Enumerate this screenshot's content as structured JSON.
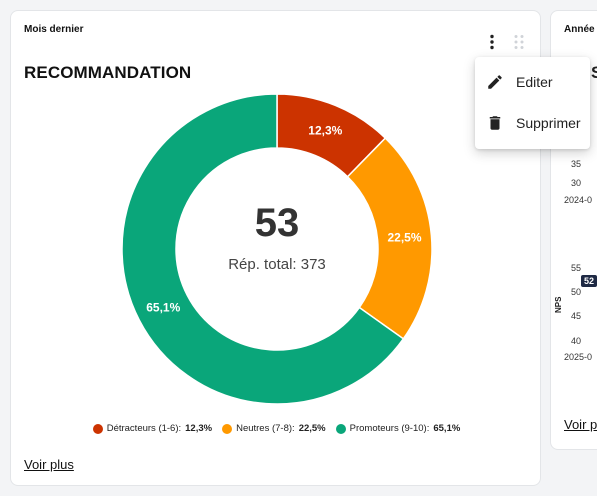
{
  "left_card": {
    "period": "Mois dernier",
    "title": "RECOMMANDATION",
    "score": "53",
    "responses_label": "Rép. total: 373",
    "voir_plus": "Voir plus",
    "legend": [
      {
        "label": "Détracteurs (1-6):",
        "value": "12,3%",
        "color": "#cc3300"
      },
      {
        "label": "Neutres (7-8):",
        "value": "22,5%",
        "color": "#ff9900"
      },
      {
        "label": "Promoteurs (9-10):",
        "value": "65,1%",
        "color": "#0aa67a"
      }
    ],
    "icons": {
      "menu": "more-vert-icon",
      "drag": "drag-handle-icon"
    }
  },
  "chart_data": {
    "type": "pie",
    "categories": [
      "Détracteurs (1-6)",
      "Neutres (7-8)",
      "Promoteurs (9-10)"
    ],
    "values": [
      12.3,
      22.5,
      65.1
    ],
    "labels": [
      "12,3%",
      "22,5%",
      "65,1%"
    ],
    "colors": [
      "#cc3300",
      "#ff9900",
      "#0aa67a"
    ],
    "center_value": "53",
    "center_label": "Rép. total: 373"
  },
  "right_card": {
    "period": "Année",
    "title": "S",
    "axis_label": "NPS",
    "upper_ticks": [
      "35",
      "30"
    ],
    "upper_date": "2024-0",
    "lower_ticks": [
      "55",
      "50",
      "45",
      "40"
    ],
    "lower_badge": "52",
    "lower_date": "2025-0",
    "voir_plus": "Voir p"
  },
  "context_menu": {
    "items": [
      {
        "label": "Editer",
        "icon": "edit-icon"
      },
      {
        "label": "Supprimer",
        "icon": "delete-icon"
      }
    ]
  }
}
